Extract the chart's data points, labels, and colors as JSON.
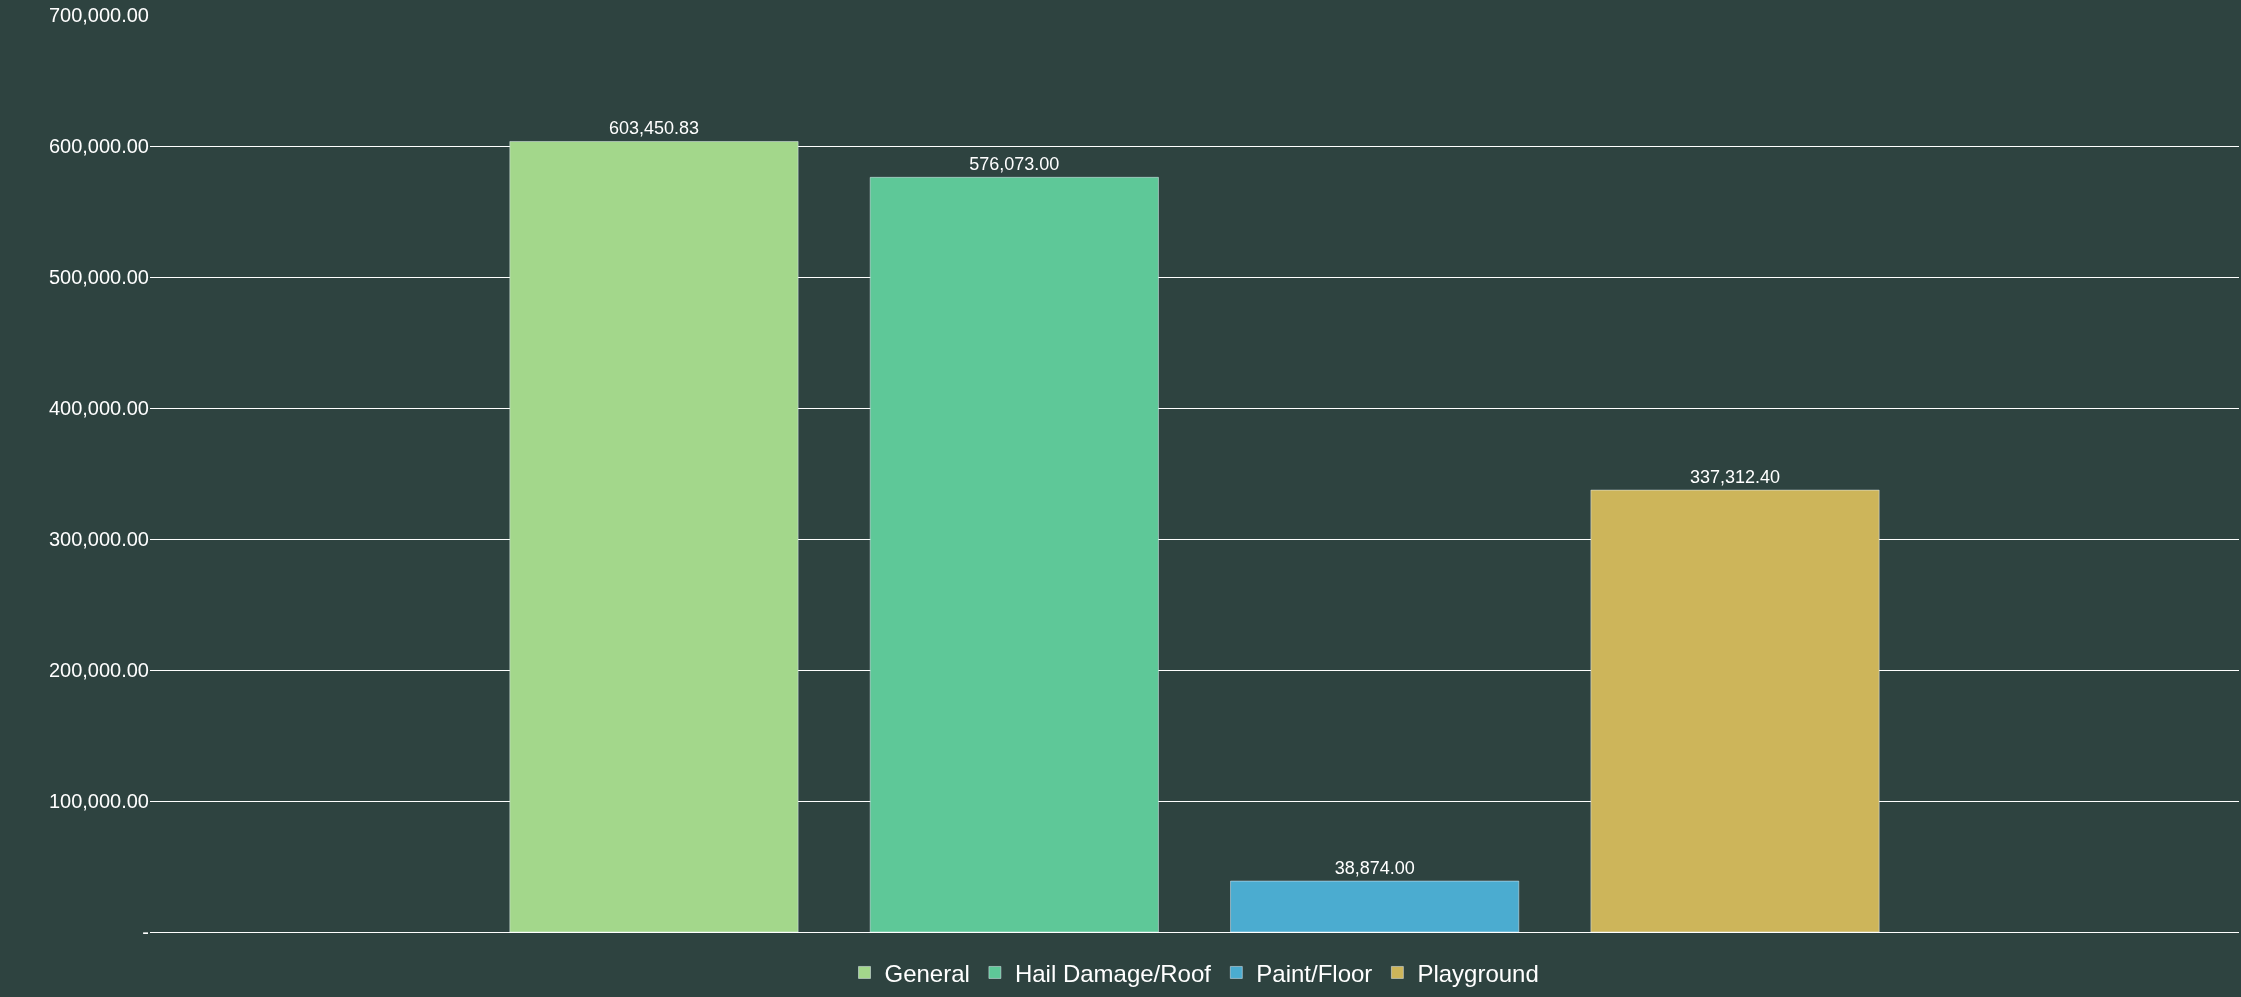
{
  "chart_data": {
    "type": "bar",
    "categories": [
      null
    ],
    "series": [
      {
        "name": "General",
        "color": "#a3d78b",
        "values": [
          603450.83
        ],
        "value_labels": [
          "603,450.83"
        ]
      },
      {
        "name": "Hail Damage/Roof",
        "color": "#5ec898",
        "values": [
          576073.0
        ],
        "value_labels": [
          "576,073.00"
        ]
      },
      {
        "name": "Paint/Floor",
        "color": "#4bacd0",
        "values": [
          38874.0
        ],
        "value_labels": [
          "38,874.00"
        ]
      },
      {
        "name": "Playground",
        "color": "#cdb55a",
        "values": [
          337312.4
        ],
        "value_labels": [
          "337,312.40"
        ]
      }
    ],
    "ylim": [
      0,
      700000
    ],
    "yticks": [
      {
        "value": 0,
        "label": "-"
      },
      {
        "value": 100000,
        "label": "100,000.00"
      },
      {
        "value": 200000,
        "label": "200,000.00"
      },
      {
        "value": 300000,
        "label": "300,000.00"
      },
      {
        "value": 400000,
        "label": "400,000.00"
      },
      {
        "value": 500000,
        "label": "500,000.00"
      },
      {
        "value": 600000,
        "label": "600,000.00"
      },
      {
        "value": 700000,
        "label": "700,000.00"
      }
    ],
    "grid": "y",
    "legend": "bottom"
  }
}
